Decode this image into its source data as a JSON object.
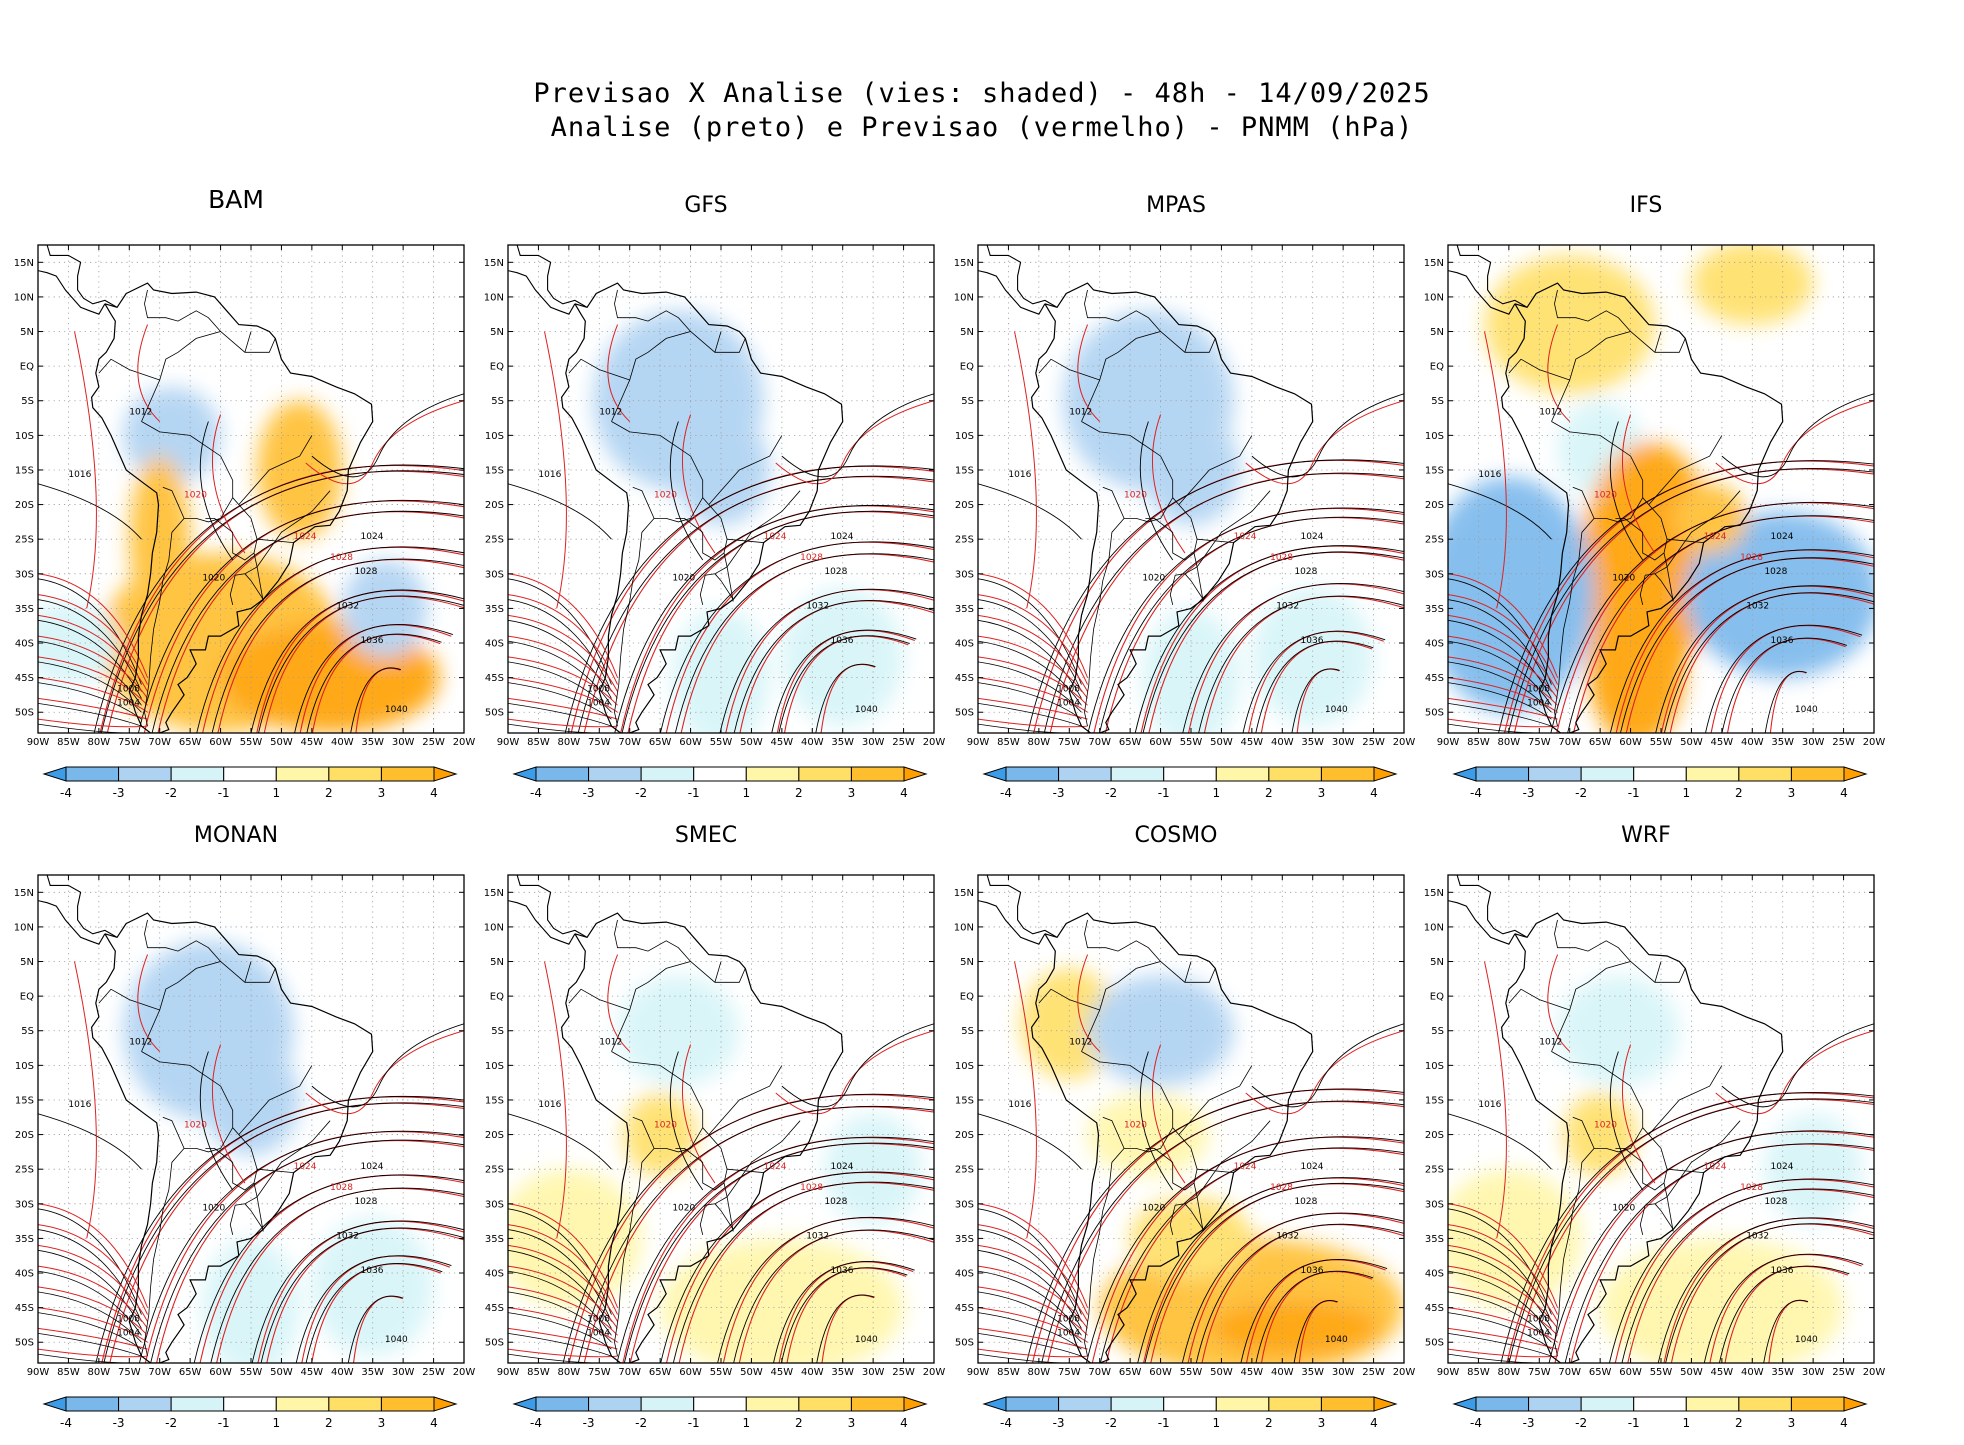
{
  "figure": {
    "title_line1": "Previsao X Analise (vies: shaded) - 48h - 14/09/2025",
    "title_line2": "Analise (preto) e Previsao (vermelho) - PNMM (hPa)"
  },
  "panels": [
    {
      "name": "BAM",
      "bias": "mixed"
    },
    {
      "name": "GFS",
      "bias": "negative"
    },
    {
      "name": "MPAS",
      "bias": "negative"
    },
    {
      "name": "IFS",
      "bias": "strong"
    },
    {
      "name": "MONAN",
      "bias": "negative"
    },
    {
      "name": "SMEC",
      "bias": "weak"
    },
    {
      "name": "COSMO",
      "bias": "positive"
    },
    {
      "name": "WRF",
      "bias": "weak"
    }
  ],
  "axes": {
    "lat_labels": [
      "15N",
      "10N",
      "5N",
      "EQ",
      "5S",
      "10S",
      "15S",
      "20S",
      "25S",
      "30S",
      "35S",
      "40S",
      "45S",
      "50S"
    ],
    "lon_labels": [
      "90W",
      "85W",
      "80W",
      "75W",
      "70W",
      "65W",
      "60W",
      "55W",
      "50W",
      "45W",
      "40W",
      "35W",
      "30W",
      "25W",
      "20W"
    ]
  },
  "colorbar": {
    "labels": [
      "-4",
      "-3",
      "-2",
      "-1",
      "1",
      "2",
      "3",
      "4"
    ],
    "colors": [
      "#3d9ce8",
      "#7ab8ec",
      "#aed2f2",
      "#d6f4f8",
      "#ffffff",
      "#fff6a8",
      "#ffdf66",
      "#ffbe2e",
      "#ffa000"
    ]
  },
  "isobar_labels": [
    "1004",
    "1008",
    "1012",
    "1016",
    "1020",
    "1024",
    "1028",
    "1032",
    "1036",
    "1040"
  ],
  "colors": {
    "analysis": "#000000",
    "forecast": "#dd2222",
    "coast": "#000000",
    "grid": "#9a9a9a"
  }
}
